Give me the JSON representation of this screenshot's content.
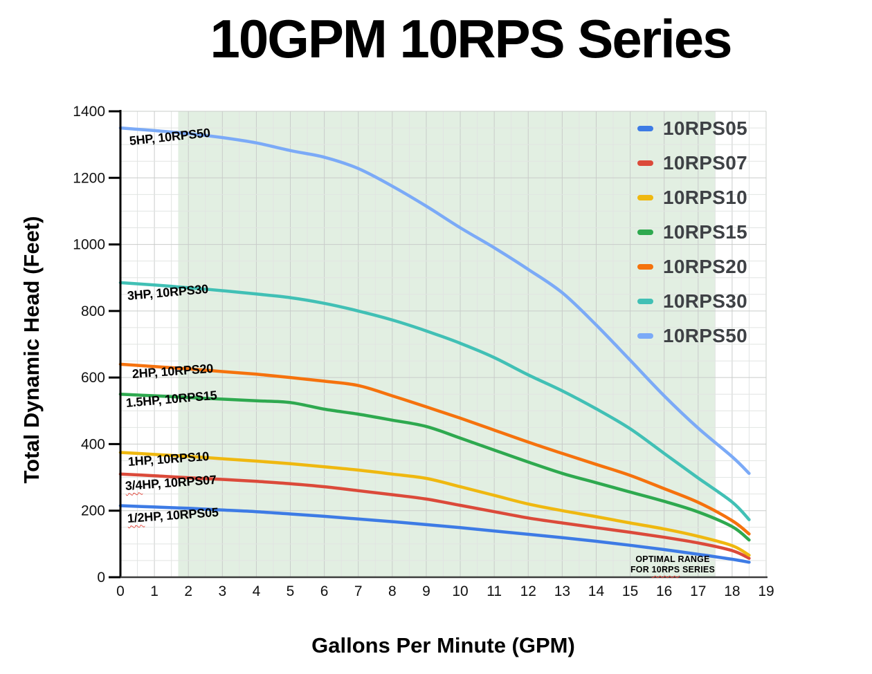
{
  "title": "10GPM 10RPS Series",
  "axes": {
    "x": {
      "title": "Gallons Per Minute (GPM)",
      "ticks": [
        0,
        1,
        2,
        3,
        4,
        5,
        6,
        7,
        8,
        9,
        10,
        11,
        12,
        13,
        14,
        15,
        16,
        17,
        18,
        19
      ],
      "minor_step": 0.5
    },
    "y": {
      "title": "Total Dynamic Head (Feet)",
      "ticks": [
        0,
        200,
        400,
        600,
        800,
        1000,
        1200,
        1400
      ],
      "minor_step": 50
    }
  },
  "legend": [
    {
      "label": "10RPS05",
      "color": "#3D7BE5"
    },
    {
      "label": "10RPS07",
      "color": "#DB4A3A"
    },
    {
      "label": "10RPS10",
      "color": "#EFB810"
    },
    {
      "label": "10RPS15",
      "color": "#2EA94F"
    },
    {
      "label": "10RPS20",
      "color": "#F5720D"
    },
    {
      "label": "10RPS30",
      "color": "#41C0B5"
    },
    {
      "label": "10RPS50",
      "color": "#7BAAF7"
    }
  ],
  "curve_labels": [
    {
      "pre": "",
      "main": "5HP, 10RPS50"
    },
    {
      "pre": "",
      "main": "3HP, 10RPS30"
    },
    {
      "pre": "",
      "main": "2HP, 10RPS20"
    },
    {
      "pre": "",
      "main": "1.5HP, 10RPS15"
    },
    {
      "pre": "",
      "main": "1HP, 10RPS10"
    },
    {
      "pre": "3/4",
      "main": "HP, 10RPS07"
    },
    {
      "pre": "1/2",
      "main": "HP, 10RPS05"
    }
  ],
  "optimal_band": {
    "note_line1": "OPTIMAL RANGE",
    "note_line2_pre": "FOR",
    "note_line2_word": "10RPS",
    "note_line2_post": "SERIES",
    "color": "#e2efe2",
    "x_from": 1.7,
    "x_to": 17.5
  },
  "chart_data": {
    "type": "line",
    "title": "10GPM 10RPS Series",
    "xlabel": "Gallons Per Minute (GPM)",
    "ylabel": "Total Dynamic Head (Feet)",
    "xlim": [
      0,
      19
    ],
    "ylim": [
      0,
      1400
    ],
    "x_tick_step": 1,
    "y_tick_step": 200,
    "grid": true,
    "legend_position": "top-right",
    "x": [
      0,
      1,
      2,
      3,
      4,
      5,
      6,
      7,
      8,
      9,
      10,
      11,
      12,
      13,
      14,
      15,
      16,
      17,
      18,
      18.5
    ],
    "series": [
      {
        "name": "10RPS05",
        "color": "#3D7BE5",
        "values": [
          215,
          211,
          207,
          202,
          197,
          190,
          183,
          175,
          167,
          158,
          149,
          139,
          129,
          119,
          108,
          96,
          83,
          69,
          54,
          45
        ]
      },
      {
        "name": "10RPS07",
        "color": "#DB4A3A",
        "values": [
          310,
          305,
          299,
          294,
          288,
          281,
          272,
          260,
          248,
          235,
          216,
          197,
          178,
          163,
          149,
          135,
          120,
          103,
          80,
          57
        ]
      },
      {
        "name": "10RPS10",
        "color": "#EFB810",
        "values": [
          375,
          369,
          363,
          356,
          349,
          341,
          332,
          322,
          310,
          297,
          272,
          246,
          220,
          200,
          182,
          163,
          145,
          123,
          95,
          66
        ]
      },
      {
        "name": "10RPS15",
        "color": "#2EA94F",
        "values": [
          550,
          545,
          540,
          535,
          530,
          525,
          505,
          490,
          472,
          453,
          418,
          382,
          346,
          312,
          284,
          256,
          228,
          196,
          152,
          112
        ]
      },
      {
        "name": "10RPS20",
        "color": "#F5720D",
        "values": [
          640,
          633,
          626,
          618,
          610,
          600,
          589,
          576,
          545,
          512,
          478,
          442,
          406,
          372,
          339,
          306,
          266,
          225,
          170,
          130
        ]
      },
      {
        "name": "10RPS30",
        "color": "#41C0B5",
        "values": [
          885,
          878,
          870,
          861,
          851,
          840,
          823,
          800,
          773,
          740,
          703,
          660,
          608,
          560,
          506,
          446,
          372,
          298,
          226,
          173
        ]
      },
      {
        "name": "10RPS50",
        "color": "#7BAAF7",
        "values": [
          1350,
          1342,
          1333,
          1321,
          1305,
          1282,
          1262,
          1228,
          1175,
          1115,
          1050,
          990,
          925,
          855,
          758,
          652,
          545,
          448,
          362,
          312
        ]
      }
    ],
    "shaded_region": {
      "x_from": 1.7,
      "x_to": 17.5,
      "label": "OPTIMAL RANGE FOR 10RPS SERIES"
    }
  }
}
